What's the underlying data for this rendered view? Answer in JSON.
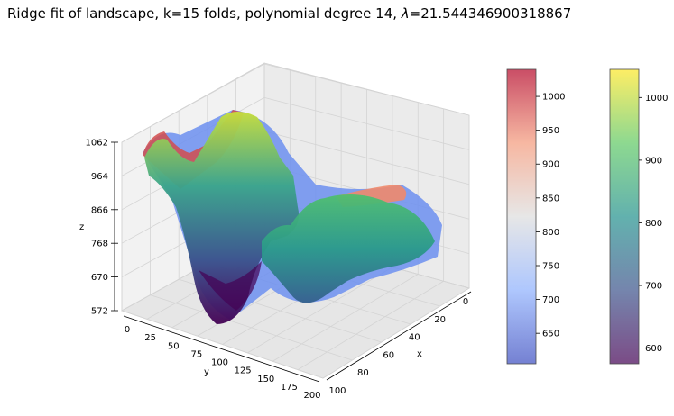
{
  "chart_data": {
    "type": "surface3d",
    "title_prefix": "Ridge fit of landscape, k=15 folds, polynomial degree 14, ",
    "title_lambda_symbol": "λ",
    "title_lambda_value": "=21.544346900318867",
    "axes": {
      "x": {
        "label": "x",
        "ticks": [
          "0",
          "20",
          "40",
          "60",
          "80",
          "100"
        ]
      },
      "y": {
        "label": "y",
        "ticks": [
          "0",
          "25",
          "50",
          "75",
          "100",
          "125",
          "150",
          "175",
          "200"
        ]
      },
      "z": {
        "label": "z",
        "ticks": [
          "572",
          "670",
          "768",
          "866",
          "964",
          "1062"
        ],
        "range": [
          572,
          1062
        ]
      }
    },
    "colorbars": [
      {
        "name": "coolwarm",
        "ticks": [
          "650",
          "700",
          "750",
          "800",
          "850",
          "900",
          "950",
          "1000"
        ],
        "range": [
          605,
          1040
        ]
      },
      {
        "name": "viridis",
        "ticks": [
          "600",
          "700",
          "800",
          "900",
          "1000"
        ],
        "range": [
          575,
          1045
        ]
      }
    ]
  }
}
